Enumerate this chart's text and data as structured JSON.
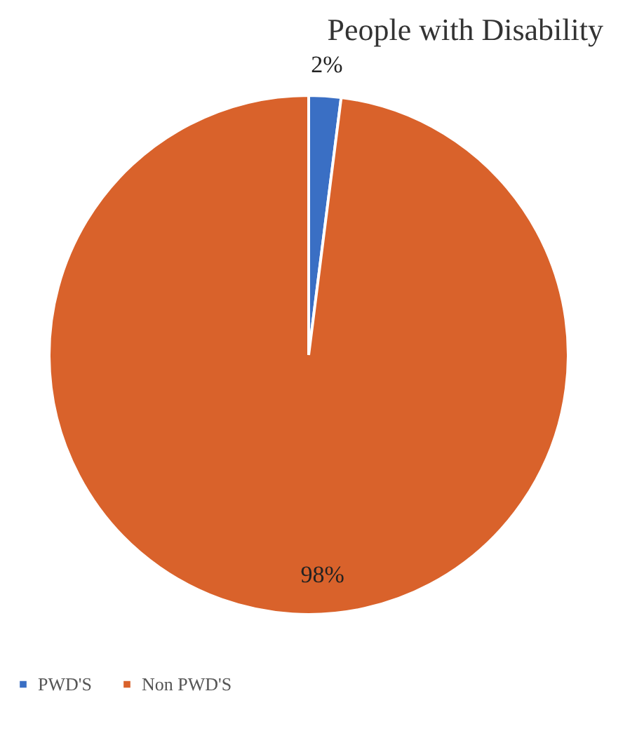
{
  "chart_data": {
    "type": "pie",
    "title": "People with Disability",
    "categories": [
      "PWD'S",
      "Non PWD'S"
    ],
    "values": [
      2,
      98
    ],
    "colors": [
      "#3a6fc4",
      "#d9622b"
    ],
    "value_labels": [
      "2%",
      "98%"
    ],
    "legend": "bottom"
  }
}
